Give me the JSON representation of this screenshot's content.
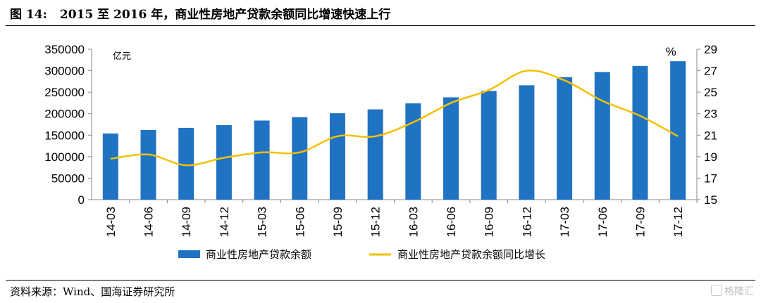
{
  "figure": {
    "number": "图 14:",
    "title": "2015 至 2016 年，商业性房地产贷款余额同比增速快速上行",
    "source": "资料来源：Wind、国海证券研究所",
    "watermark": "格隆汇"
  },
  "chart_data": {
    "type": "bar+line",
    "categories": [
      "14-03",
      "14-06",
      "14-09",
      "14-12",
      "15-03",
      "15-06",
      "15-09",
      "15-12",
      "16-03",
      "16-06",
      "16-09",
      "16-12",
      "17-03",
      "17-06",
      "17-09",
      "17-12"
    ],
    "series": [
      {
        "name": "商业性房地产贷款余额",
        "kind": "bar",
        "axis": "left",
        "color": "#1f73c2",
        "values": [
          154000,
          162000,
          167000,
          173500,
          184000,
          192000,
          201000,
          210000,
          224000,
          238000,
          253000,
          266000,
          285000,
          297000,
          311000,
          322000
        ]
      },
      {
        "name": "商业性房地产贷款余额同比增长",
        "kind": "line",
        "axis": "right",
        "color": "#f5c000",
        "values": [
          18.8,
          19.2,
          18.2,
          18.9,
          19.4,
          19.4,
          20.9,
          20.9,
          22.2,
          24.0,
          25.2,
          27.0,
          26.1,
          24.2,
          22.8,
          20.9
        ]
      }
    ],
    "left_axis": {
      "unit": "亿元",
      "min": 0,
      "max": 350000,
      "ticks": [
        "0",
        "50000",
        "100000",
        "150000",
        "200000",
        "250000",
        "300000",
        "350000"
      ]
    },
    "right_axis": {
      "unit": "%",
      "min": 15,
      "max": 29,
      "ticks": [
        "15",
        "17",
        "19",
        "21",
        "23",
        "25",
        "27",
        "29"
      ]
    },
    "grid": false,
    "legend_position": "bottom"
  }
}
